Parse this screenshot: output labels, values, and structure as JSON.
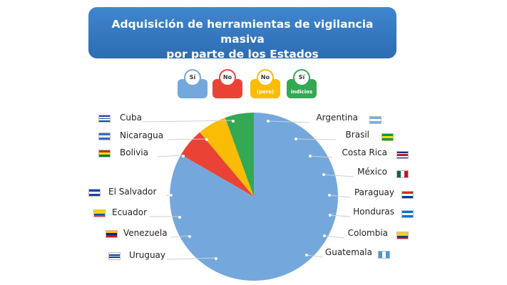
{
  "title": {
    "line1": "Adquisición de herramientas de vigilancia masiva",
    "line2": "por parte de los Estados"
  },
  "legend": [
    {
      "label": "Sí",
      "sub": "",
      "color": "#74a8dc"
    },
    {
      "label": "No",
      "sub": "",
      "color": "#ea4335"
    },
    {
      "label": "No",
      "sub": "(pero)",
      "color": "#fbbc05"
    },
    {
      "label": "Sí",
      "sub": "indicios",
      "color": "#34a853"
    }
  ],
  "chart_data": {
    "type": "pie",
    "title": "Adquisición de herramientas de vigilancia masiva por parte de los Estados",
    "slices": [
      {
        "label": "Sí",
        "countries": 15,
        "color": "#74a8dc"
      },
      {
        "label": "No",
        "countries": 1,
        "color": "#ea4335"
      },
      {
        "label": "No (pero)",
        "countries": 1,
        "color": "#fbbc05"
      },
      {
        "label": "Sí indicios",
        "countries": 1,
        "color": "#34a853"
      }
    ]
  },
  "countries_left": [
    {
      "name": "Cuba",
      "flag": "cuba"
    },
    {
      "name": "Nicaragua",
      "flag": "nicaragua"
    },
    {
      "name": "Bolivia",
      "flag": "bolivia"
    },
    {
      "name": "El Salvador",
      "flag": "el-salvador"
    },
    {
      "name": "Ecuador",
      "flag": "ecuador"
    },
    {
      "name": "Venezuela",
      "flag": "venezuela"
    },
    {
      "name": "Uruguay",
      "flag": "uruguay"
    }
  ],
  "countries_right": [
    {
      "name": "Argentina",
      "flag": "argentina"
    },
    {
      "name": "Brasil",
      "flag": "brasil"
    },
    {
      "name": "Costa Rica",
      "flag": "costa-rica"
    },
    {
      "name": "México",
      "flag": "mexico"
    },
    {
      "name": "Paraguay",
      "flag": "paraguay"
    },
    {
      "name": "Honduras",
      "flag": "honduras"
    },
    {
      "name": "Colombia",
      "flag": "colombia"
    },
    {
      "name": "Guatemala",
      "flag": "guatemala"
    }
  ]
}
